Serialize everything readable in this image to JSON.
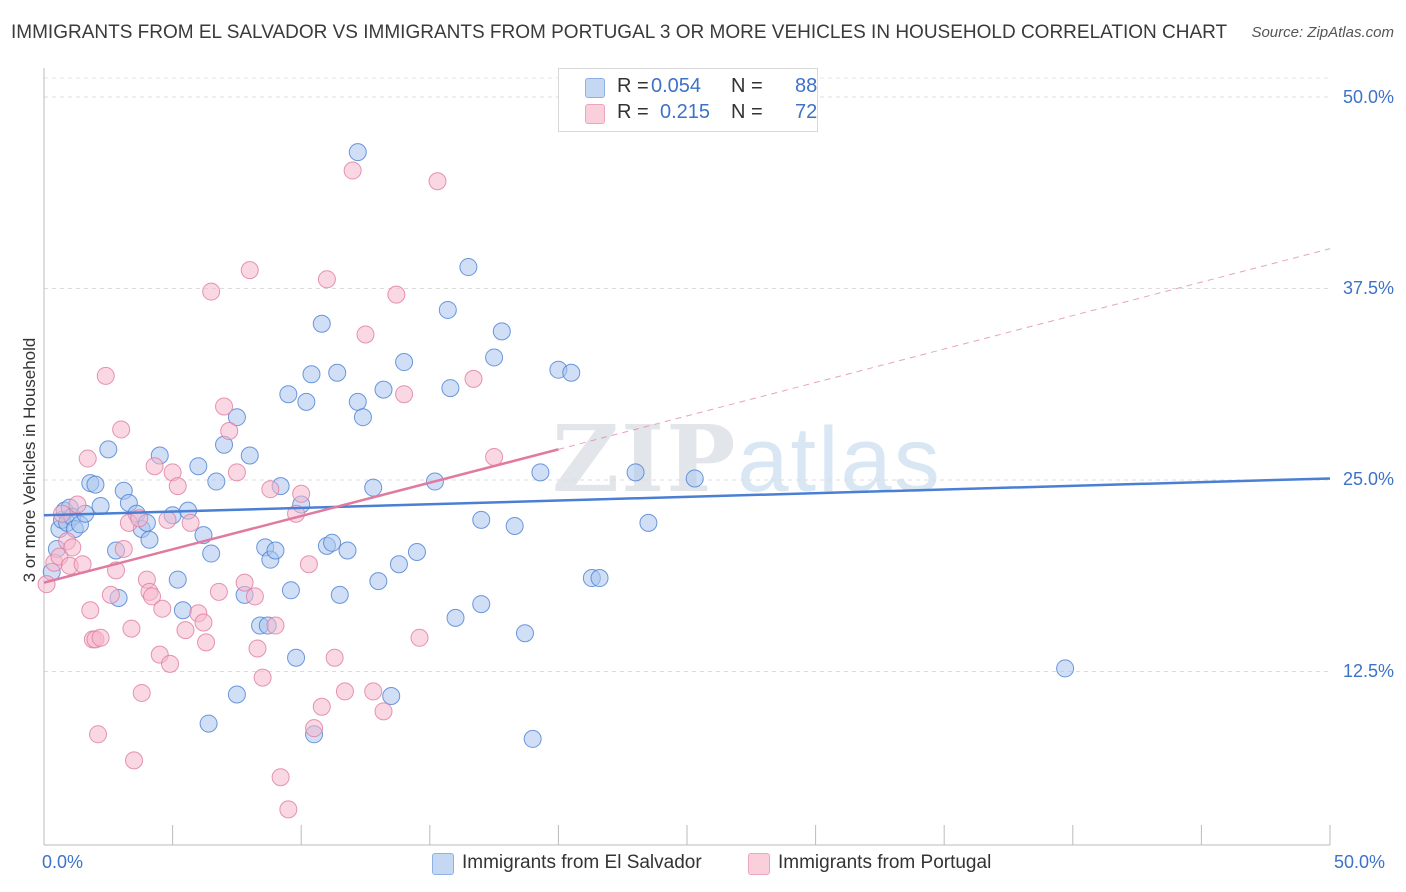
{
  "title": "IMMIGRANTS FROM EL SALVADOR VS IMMIGRANTS FROM PORTUGAL 3 OR MORE VEHICLES IN HOUSEHOLD CORRELATION CHART",
  "source": "Source: ZipAtlas.com",
  "watermark": {
    "zip": "ZIP",
    "atlas": "atlas"
  },
  "legend": {
    "rows": [
      {
        "r_label": "R =",
        "r_value": "0.054",
        "n_label": "N =",
        "n_value": "88",
        "color": "#a9c5ee"
      },
      {
        "r_label": "R =",
        "r_value": "0.215",
        "n_label": "N =",
        "n_value": "72",
        "color": "#f5b8cc"
      }
    ]
  },
  "chart_data": {
    "type": "scatter",
    "title": "IMMIGRANTS FROM EL SALVADOR VS IMMIGRANTS FROM PORTUGAL 3 OR MORE VEHICLES IN HOUSEHOLD CORRELATION CHART",
    "xlabel": "",
    "ylabel": "3 or more Vehicles in Household",
    "xlim": [
      0,
      50
    ],
    "ylim": [
      0,
      50
    ],
    "x_tick_labels": [
      "0.0%",
      "50.0%"
    ],
    "y_tick_values": [
      12.5,
      25.0,
      37.5,
      50.0
    ],
    "y_tick_labels": [
      "12.5%",
      "25.0%",
      "37.5%",
      "50.0%"
    ],
    "grid": true,
    "legend_position": "bottom",
    "series": [
      {
        "name": "Immigrants from El Salvador",
        "color": "#4a7fd4",
        "fill": "#a9c5ee",
        "trend": {
          "x": [
            0,
            50
          ],
          "y": [
            22.7,
            25.1
          ],
          "style": "solid"
        },
        "points": [
          [
            0.3,
            19.0
          ],
          [
            0.5,
            20.5
          ],
          [
            0.6,
            21.8
          ],
          [
            0.7,
            22.4
          ],
          [
            0.8,
            23.0
          ],
          [
            0.9,
            22.2
          ],
          [
            1.0,
            23.2
          ],
          [
            1.1,
            22.6
          ],
          [
            1.2,
            21.8
          ],
          [
            1.4,
            22.1
          ],
          [
            1.6,
            22.8
          ],
          [
            1.8,
            24.8
          ],
          [
            2.0,
            24.7
          ],
          [
            2.2,
            23.3
          ],
          [
            2.5,
            27.0
          ],
          [
            2.8,
            20.4
          ],
          [
            2.9,
            17.3
          ],
          [
            3.1,
            24.3
          ],
          [
            3.3,
            23.5
          ],
          [
            3.6,
            22.8
          ],
          [
            3.8,
            21.8
          ],
          [
            4.0,
            22.2
          ],
          [
            4.1,
            21.1
          ],
          [
            4.5,
            26.6
          ],
          [
            5.0,
            22.7
          ],
          [
            5.2,
            18.5
          ],
          [
            5.4,
            16.5
          ],
          [
            5.6,
            23.0
          ],
          [
            6.0,
            25.9
          ],
          [
            6.2,
            21.4
          ],
          [
            6.5,
            20.2
          ],
          [
            6.7,
            24.9
          ],
          [
            7.0,
            27.3
          ],
          [
            7.5,
            29.1
          ],
          [
            7.8,
            17.5
          ],
          [
            8.0,
            26.6
          ],
          [
            8.4,
            15.5
          ],
          [
            8.6,
            20.6
          ],
          [
            8.8,
            19.8
          ],
          [
            9.0,
            20.4
          ],
          [
            9.2,
            24.6
          ],
          [
            9.5,
            30.6
          ],
          [
            9.6,
            17.8
          ],
          [
            10.0,
            23.4
          ],
          [
            10.2,
            30.1
          ],
          [
            10.8,
            35.2
          ],
          [
            11.0,
            20.7
          ],
          [
            11.2,
            20.9
          ],
          [
            11.4,
            32.0
          ],
          [
            11.8,
            20.4
          ],
          [
            12.2,
            30.1
          ],
          [
            12.4,
            29.1
          ],
          [
            12.8,
            24.5
          ],
          [
            13.0,
            18.4
          ],
          [
            13.2,
            30.9
          ],
          [
            13.8,
            19.5
          ],
          [
            14.0,
            32.7
          ],
          [
            14.5,
            20.3
          ],
          [
            15.2,
            24.9
          ],
          [
            15.7,
            36.1
          ],
          [
            15.8,
            31.0
          ],
          [
            16.0,
            16.0
          ],
          [
            16.5,
            38.9
          ],
          [
            17.0,
            22.4
          ],
          [
            17.5,
            33.0
          ],
          [
            17.8,
            34.7
          ],
          [
            17.0,
            16.9
          ],
          [
            18.3,
            22.0
          ],
          [
            18.7,
            15.0
          ],
          [
            19.0,
            8.1
          ],
          [
            19.3,
            25.5
          ],
          [
            20.0,
            32.2
          ],
          [
            20.5,
            32.0
          ],
          [
            21.3,
            18.6
          ],
          [
            21.6,
            18.6
          ],
          [
            23.0,
            25.5
          ],
          [
            23.5,
            22.2
          ],
          [
            25.3,
            25.1
          ],
          [
            39.7,
            12.7
          ],
          [
            13.5,
            10.9
          ],
          [
            6.4,
            9.1
          ],
          [
            10.5,
            8.4
          ],
          [
            8.7,
            15.5
          ],
          [
            9.8,
            13.4
          ],
          [
            7.5,
            11.0
          ],
          [
            12.2,
            46.4
          ],
          [
            10.4,
            31.9
          ],
          [
            11.5,
            17.5
          ]
        ]
      },
      {
        "name": "Immigrants from Portugal",
        "color": "#e07aa0",
        "fill": "#f5b8cc",
        "trend": {
          "x": [
            0,
            20
          ],
          "y": [
            18.3,
            27.0
          ],
          "style": "solid"
        },
        "trend_extension": {
          "x": [
            20,
            50
          ],
          "y": [
            27.0,
            40.1
          ],
          "style": "dashed"
        },
        "points": [
          [
            0.1,
            18.2
          ],
          [
            0.4,
            19.6
          ],
          [
            0.6,
            20.0
          ],
          [
            0.7,
            22.8
          ],
          [
            0.9,
            21.0
          ],
          [
            1.0,
            19.4
          ],
          [
            1.1,
            20.6
          ],
          [
            1.3,
            23.4
          ],
          [
            1.5,
            19.5
          ],
          [
            1.7,
            26.4
          ],
          [
            1.8,
            16.5
          ],
          [
            1.9,
            14.6
          ],
          [
            2.0,
            14.6
          ],
          [
            2.1,
            8.4
          ],
          [
            2.2,
            14.7
          ],
          [
            2.4,
            31.8
          ],
          [
            2.6,
            17.5
          ],
          [
            2.8,
            19.1
          ],
          [
            3.0,
            28.3
          ],
          [
            3.1,
            20.5
          ],
          [
            3.3,
            22.2
          ],
          [
            3.4,
            15.3
          ],
          [
            3.5,
            6.7
          ],
          [
            3.7,
            22.5
          ],
          [
            3.8,
            11.1
          ],
          [
            4.0,
            18.5
          ],
          [
            4.1,
            17.7
          ],
          [
            4.2,
            17.4
          ],
          [
            4.3,
            25.9
          ],
          [
            4.5,
            13.6
          ],
          [
            4.6,
            16.6
          ],
          [
            4.8,
            22.4
          ],
          [
            5.0,
            25.5
          ],
          [
            5.2,
            24.6
          ],
          [
            5.5,
            15.2
          ],
          [
            5.7,
            22.2
          ],
          [
            6.0,
            16.3
          ],
          [
            6.2,
            15.7
          ],
          [
            6.5,
            37.3
          ],
          [
            6.8,
            17.7
          ],
          [
            7.0,
            29.8
          ],
          [
            7.2,
            28.2
          ],
          [
            7.5,
            25.5
          ],
          [
            7.8,
            18.3
          ],
          [
            8.0,
            38.7
          ],
          [
            8.2,
            17.4
          ],
          [
            8.5,
            12.1
          ],
          [
            8.8,
            24.4
          ],
          [
            9.0,
            15.5
          ],
          [
            9.2,
            5.6
          ],
          [
            9.5,
            3.5
          ],
          [
            9.8,
            22.8
          ],
          [
            10.0,
            24.1
          ],
          [
            10.3,
            19.5
          ],
          [
            10.5,
            8.8
          ],
          [
            10.8,
            10.2
          ],
          [
            11.0,
            38.1
          ],
          [
            11.3,
            13.4
          ],
          [
            11.7,
            11.2
          ],
          [
            12.0,
            45.2
          ],
          [
            12.5,
            34.5
          ],
          [
            12.8,
            11.2
          ],
          [
            13.2,
            9.9
          ],
          [
            13.7,
            37.1
          ],
          [
            14.0,
            30.6
          ],
          [
            14.6,
            14.7
          ],
          [
            15.3,
            44.5
          ],
          [
            16.7,
            31.6
          ],
          [
            17.5,
            26.5
          ],
          [
            6.3,
            14.4
          ],
          [
            4.9,
            13.0
          ],
          [
            8.3,
            14.0
          ]
        ]
      }
    ]
  },
  "bottom_legend": [
    {
      "label": "Immigrants from El Salvador"
    },
    {
      "label": "Immigrants from Portugal"
    }
  ]
}
